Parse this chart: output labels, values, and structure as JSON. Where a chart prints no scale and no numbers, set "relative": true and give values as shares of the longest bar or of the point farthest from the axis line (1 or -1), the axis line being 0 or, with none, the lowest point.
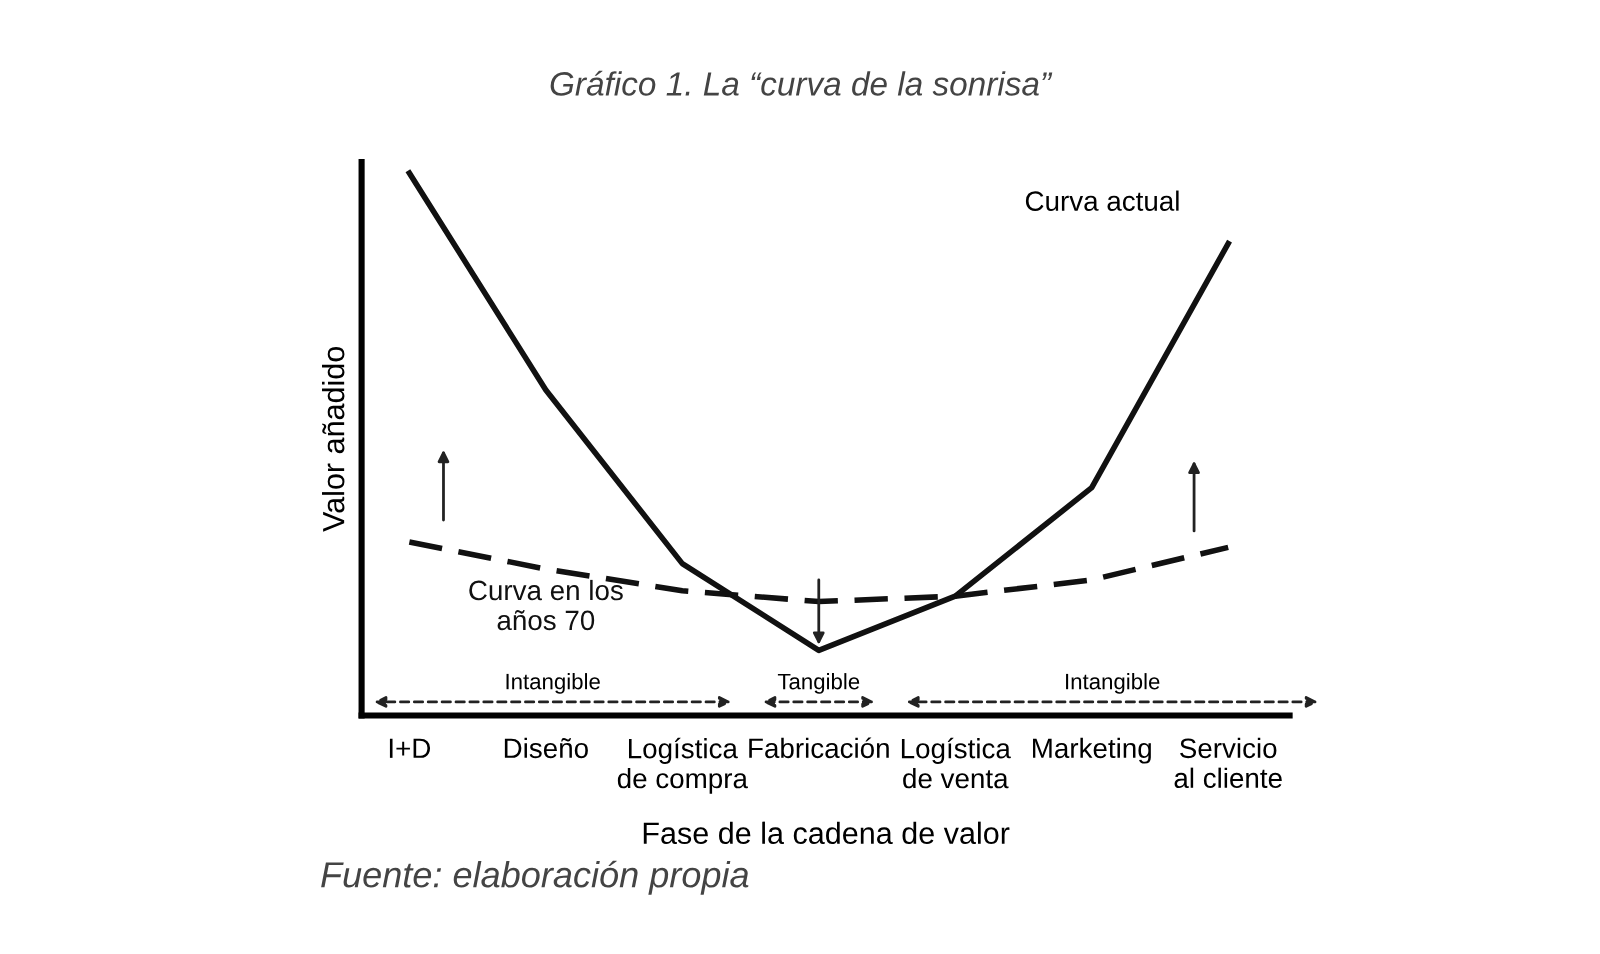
{
  "chart_data": {
    "type": "line",
    "title": "Gráfico 1. La “curva de la sonrisa”",
    "xlabel": "Fase de la cadena de valor",
    "ylabel": "Valor añadido",
    "relative": true,
    "categories": [
      "I+D",
      "Diseño",
      "Logística\nde compra",
      "Fabricación",
      "Logística\nde venta",
      "Marketing",
      "Servicio\nal cliente"
    ],
    "series": [
      {
        "name": "Curva actual",
        "color": "#111111",
        "line_style": "solid",
        "values": [
          1.0,
          0.6,
          0.28,
          0.12,
          0.22,
          0.42,
          0.87
        ]
      },
      {
        "name": "Curva en los\naños 70",
        "color": "#111111",
        "line_style": "dashed",
        "values": [
          0.32,
          0.27,
          0.23,
          0.21,
          0.22,
          0.25,
          0.31
        ]
      }
    ],
    "annotations": [
      "Intangible",
      "Tangible",
      "Intangible",
      "Fuente: elaboración propia"
    ]
  }
}
